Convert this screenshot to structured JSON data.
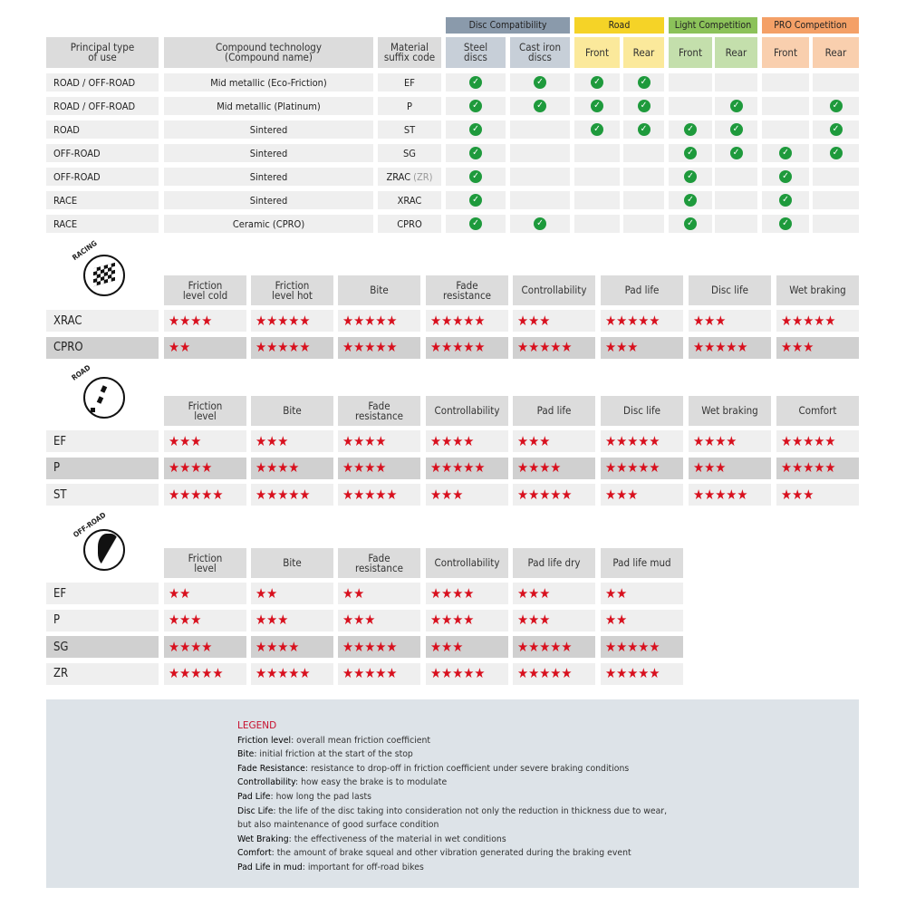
{
  "colors": {
    "check": "#1e9a3c",
    "star": "#d8101e",
    "disc": "#8a9aab",
    "road": "#f5d327",
    "light": "#8cc25a",
    "pro": "#f4a067"
  },
  "compat": {
    "groups": [
      {
        "label": "Disc Compatibility"
      },
      {
        "label": "Road"
      },
      {
        "label": "Light Competition"
      },
      {
        "label": "PRO Competition"
      }
    ],
    "headers": [
      "Principal type\nof use",
      "Compound technology\n(Compound name)",
      "Material\nsuffix code",
      "Steel\ndiscs",
      "Cast iron\ndiscs",
      "Front",
      "Rear",
      "Front",
      "Rear",
      "Front",
      "Rear"
    ],
    "rows": [
      {
        "type": "ROAD / OFF-ROAD",
        "compound": "Mid metallic (Eco-Friction)",
        "code": "EF",
        "checks": [
          1,
          1,
          1,
          1,
          0,
          0,
          0,
          0
        ]
      },
      {
        "type": "ROAD / OFF-ROAD",
        "compound": "Mid metallic (Platinum)",
        "code": "P",
        "checks": [
          1,
          1,
          1,
          1,
          0,
          1,
          0,
          1
        ]
      },
      {
        "type": "ROAD",
        "compound": "Sintered",
        "code": "ST",
        "checks": [
          1,
          0,
          1,
          1,
          1,
          1,
          0,
          1
        ]
      },
      {
        "type": "OFF-ROAD",
        "compound": "Sintered",
        "code": "SG",
        "checks": [
          1,
          0,
          0,
          0,
          1,
          1,
          1,
          1
        ]
      },
      {
        "type": "OFF-ROAD",
        "compound": "Sintered",
        "code": "ZRAC",
        "code_suffix": "(ZR)",
        "checks": [
          1,
          0,
          0,
          0,
          1,
          0,
          1,
          0
        ]
      },
      {
        "type": "RACE",
        "compound": "Sintered",
        "code": "XRAC",
        "checks": [
          1,
          0,
          0,
          0,
          1,
          0,
          1,
          0
        ]
      },
      {
        "type": "RACE",
        "compound": "Ceramic (CPRO)",
        "code": "CPRO",
        "checks": [
          1,
          1,
          0,
          0,
          1,
          0,
          1,
          0
        ]
      }
    ]
  },
  "ratings": [
    {
      "logo": "RACING",
      "headers": [
        "Friction\nlevel cold",
        "Friction\nlevel hot",
        "Bite",
        "Fade\nresistance",
        "Controllability",
        "Pad life",
        "Disc life",
        "Wet braking"
      ],
      "rows": [
        {
          "name": "XRAC",
          "stars": [
            4,
            5,
            5,
            5,
            3,
            5,
            3,
            5
          ]
        },
        {
          "name": "CPRO",
          "stars": [
            2,
            5,
            5,
            5,
            5,
            3,
            5,
            3
          ],
          "dark": true
        }
      ]
    },
    {
      "logo": "ROAD",
      "headers": [
        "Friction\nlevel",
        "Bite",
        "Fade\nresistance",
        "Controllability",
        "Pad life",
        "Disc life",
        "Wet braking",
        "Comfort"
      ],
      "rows": [
        {
          "name": "EF",
          "stars": [
            3,
            3,
            4,
            4,
            3,
            5,
            4,
            5
          ]
        },
        {
          "name": "P",
          "stars": [
            4,
            4,
            4,
            5,
            4,
            5,
            3,
            5
          ],
          "dark": true
        },
        {
          "name": "ST",
          "stars": [
            5,
            5,
            5,
            3,
            5,
            3,
            5,
            3
          ]
        }
      ]
    },
    {
      "logo": "OFF-ROAD",
      "headers": [
        "Friction\nlevel",
        "Bite",
        "Fade\nresistance",
        "Controllability",
        "Pad life dry",
        "Pad life mud"
      ],
      "rows": [
        {
          "name": "EF",
          "stars": [
            2,
            2,
            2,
            4,
            3,
            2
          ]
        },
        {
          "name": "P",
          "stars": [
            3,
            3,
            3,
            4,
            3,
            2
          ]
        },
        {
          "name": "SG",
          "stars": [
            4,
            4,
            5,
            3,
            5,
            5
          ],
          "dark": true
        },
        {
          "name": "ZR",
          "stars": [
            5,
            5,
            5,
            5,
            5,
            5
          ]
        }
      ]
    }
  ],
  "legend": {
    "title": "LEGEND",
    "items": [
      {
        "term": "Friction level",
        "desc": ": overall mean friction coefficient"
      },
      {
        "term": "Bite",
        "desc": ": initial friction at the start of the stop"
      },
      {
        "term": "Fade Resistance",
        "desc": ": resistance to drop-off in friction coefficient under severe braking conditions"
      },
      {
        "term": "Controllability",
        "desc": ": how easy the brake is to modulate"
      },
      {
        "term": "Pad Life",
        "desc": ": how long the pad lasts"
      },
      {
        "term": "Disc Life",
        "desc": ": the life of the disc taking into consideration not only the reduction in thickness due to wear,"
      },
      {
        "term": "",
        "desc": "but also maintenance of good surface condition"
      },
      {
        "term": "Wet Braking",
        "desc": ": the effectiveness of the material in wet conditions"
      },
      {
        "term": "Comfort",
        "desc": ": the amount of brake squeal and other vibration generated during the braking event"
      },
      {
        "term": "Pad Life in mud",
        "desc": ": important for off-road bikes"
      }
    ]
  }
}
